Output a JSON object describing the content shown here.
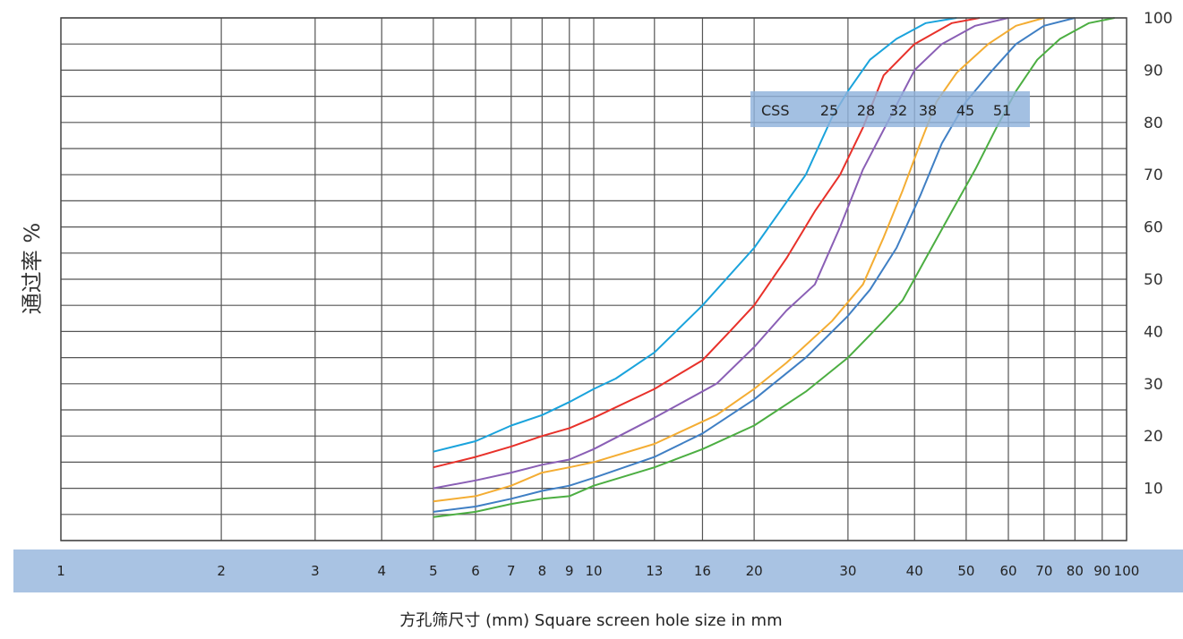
{
  "chart_data": {
    "type": "line",
    "x_scale": "log",
    "xlim": [
      1,
      100
    ],
    "ylim": [
      0,
      100
    ],
    "grid": true,
    "xlabel": "方孔筛尺寸 (mm)  Square screen hole size in mm",
    "ylabel": "通过率 %",
    "x_ticks": [
      1,
      2,
      3,
      4,
      5,
      6,
      7,
      8,
      9,
      10,
      13,
      16,
      20,
      30,
      40,
      50,
      60,
      70,
      80,
      90,
      100
    ],
    "y_ticks": [
      10,
      20,
      30,
      40,
      50,
      60,
      70,
      80,
      90,
      100
    ],
    "h_grid": [
      0,
      5,
      10,
      15,
      20,
      25,
      30,
      35,
      40,
      45,
      50,
      55,
      60,
      65,
      70,
      75,
      80,
      85,
      90,
      95,
      100
    ],
    "legend": {
      "placement": "top-right",
      "title": "CSS",
      "labels": [
        "25",
        "28",
        "32",
        "38",
        "45",
        "51"
      ]
    },
    "series": [
      {
        "name": "25",
        "color": "#1aa3dc",
        "points": [
          [
            5,
            17
          ],
          [
            6,
            19
          ],
          [
            7,
            22
          ],
          [
            8,
            24
          ],
          [
            9,
            26.5
          ],
          [
            10,
            29
          ],
          [
            11,
            31
          ],
          [
            13,
            36
          ],
          [
            16,
            45
          ],
          [
            20,
            56
          ],
          [
            25,
            70
          ],
          [
            28,
            81
          ],
          [
            30,
            86
          ],
          [
            33,
            92
          ],
          [
            37,
            96
          ],
          [
            42,
            99
          ],
          [
            48,
            100
          ]
        ]
      },
      {
        "name": "28",
        "color": "#e8312a",
        "points": [
          [
            5,
            14
          ],
          [
            6,
            16
          ],
          [
            7,
            18
          ],
          [
            8,
            20
          ],
          [
            9,
            21.5
          ],
          [
            10,
            23.5
          ],
          [
            13,
            29
          ],
          [
            16,
            34.5
          ],
          [
            18,
            40
          ],
          [
            20,
            45
          ],
          [
            23,
            54
          ],
          [
            26,
            63
          ],
          [
            29,
            70
          ],
          [
            32,
            79
          ],
          [
            35,
            89
          ],
          [
            40,
            95
          ],
          [
            47,
            99
          ],
          [
            53,
            100
          ]
        ]
      },
      {
        "name": "32",
        "color": "#8a5fb5",
        "points": [
          [
            5,
            10
          ],
          [
            6,
            11.5
          ],
          [
            7,
            13
          ],
          [
            8,
            14.5
          ],
          [
            9,
            15.5
          ],
          [
            10,
            17.5
          ],
          [
            13,
            23.5
          ],
          [
            17,
            30
          ],
          [
            20,
            37
          ],
          [
            23,
            44
          ],
          [
            26,
            49
          ],
          [
            29,
            60
          ],
          [
            32,
            71
          ],
          [
            36,
            81
          ],
          [
            40,
            90
          ],
          [
            45,
            95
          ],
          [
            52,
            98.5
          ],
          [
            60,
            100
          ]
        ]
      },
      {
        "name": "38",
        "color": "#f4ad33",
        "points": [
          [
            5,
            7.5
          ],
          [
            6,
            8.5
          ],
          [
            7,
            10.5
          ],
          [
            8,
            13
          ],
          [
            9,
            14
          ],
          [
            10,
            15
          ],
          [
            13,
            18.5
          ],
          [
            17,
            24
          ],
          [
            20,
            29
          ],
          [
            23,
            34
          ],
          [
            28,
            42
          ],
          [
            32,
            49
          ],
          [
            35,
            58
          ],
          [
            38,
            67
          ],
          [
            41,
            76
          ],
          [
            44,
            84
          ],
          [
            48,
            89.5
          ],
          [
            55,
            95
          ],
          [
            62,
            98.5
          ],
          [
            70,
            100
          ]
        ]
      },
      {
        "name": "45",
        "color": "#3f7fc4",
        "points": [
          [
            5,
            5.5
          ],
          [
            6,
            6.5
          ],
          [
            7,
            8
          ],
          [
            8,
            9.5
          ],
          [
            9,
            10.5
          ],
          [
            10,
            12
          ],
          [
            13,
            16
          ],
          [
            16,
            20.5
          ],
          [
            20,
            27
          ],
          [
            25,
            35
          ],
          [
            30,
            43
          ],
          [
            33,
            48
          ],
          [
            37,
            56
          ],
          [
            41,
            66
          ],
          [
            45,
            76
          ],
          [
            50,
            84
          ],
          [
            56,
            90
          ],
          [
            62,
            95
          ],
          [
            70,
            98.5
          ],
          [
            80,
            100
          ]
        ]
      },
      {
        "name": "51",
        "color": "#4cae42",
        "points": [
          [
            5,
            4.5
          ],
          [
            6,
            5.5
          ],
          [
            7,
            7
          ],
          [
            8,
            8
          ],
          [
            9,
            8.5
          ],
          [
            10,
            10.5
          ],
          [
            13,
            14
          ],
          [
            16,
            17.5
          ],
          [
            20,
            22
          ],
          [
            25,
            28.5
          ],
          [
            30,
            35
          ],
          [
            35,
            42
          ],
          [
            38,
            46
          ],
          [
            42,
            54
          ],
          [
            47,
            63
          ],
          [
            52,
            71
          ],
          [
            57,
            79
          ],
          [
            62,
            86
          ],
          [
            68,
            92
          ],
          [
            75,
            96
          ],
          [
            85,
            99
          ],
          [
            95,
            100
          ]
        ]
      }
    ]
  }
}
